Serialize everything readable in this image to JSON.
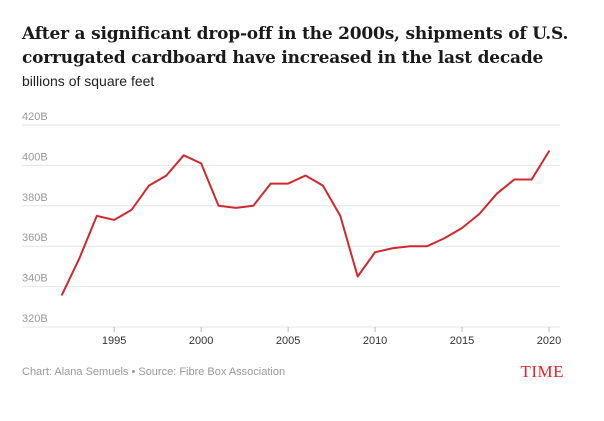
{
  "header": {
    "title": "After a significant drop-off in the 2000s, shipments of U.S. corrugated cardboard have increased in the last decade",
    "subtitle": "billions of square feet"
  },
  "footer": {
    "credit": "Chart: Alana Semuels • Source: Fibre Box Association",
    "brand": "TIME"
  },
  "colors": {
    "line": "#d0282e",
    "grid": "#e6e6e6",
    "tick_text": "#999999",
    "x_tick_text": "#333333"
  },
  "chart_data": {
    "type": "line",
    "title": "After a significant drop-off in the 2000s, shipments of U.S. corrugated cardboard have increased in the last decade",
    "ylabel": "billions of square feet",
    "xlabel": "",
    "xlim": [
      1992,
      2020
    ],
    "ylim": [
      320,
      420
    ],
    "x_ticks": [
      1995,
      2000,
      2005,
      2010,
      2015,
      2020
    ],
    "x_tick_labels": [
      "1995",
      "2000",
      "2005",
      "2010",
      "2015",
      "2020"
    ],
    "y_ticks": [
      320,
      340,
      360,
      380,
      400,
      420
    ],
    "y_tick_labels": [
      "320B",
      "340B",
      "360B",
      "380B",
      "400B",
      "420B"
    ],
    "grid": true,
    "x": [
      1992,
      1993,
      1994,
      1995,
      1996,
      1997,
      1998,
      1999,
      2000,
      2001,
      2002,
      2003,
      2004,
      2005,
      2006,
      2007,
      2008,
      2009,
      2010,
      2011,
      2012,
      2013,
      2014,
      2015,
      2016,
      2017,
      2018,
      2019,
      2020
    ],
    "series": [
      {
        "values": [
          336,
          354,
          375,
          373,
          378,
          390,
          395,
          405,
          401,
          380,
          379,
          380,
          391,
          391,
          395,
          390,
          375,
          345,
          357,
          359,
          360,
          360,
          364,
          369,
          376,
          386,
          393,
          393,
          407
        ]
      }
    ]
  }
}
